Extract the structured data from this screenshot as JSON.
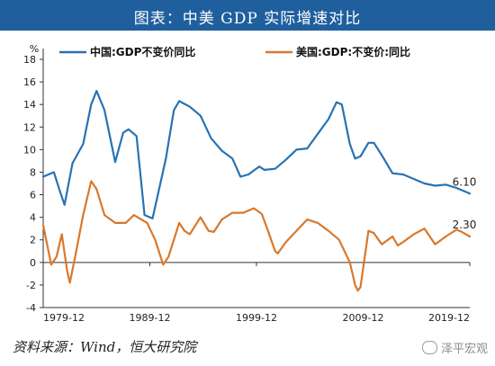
{
  "title": "图表：中美 GDP 实际增速对比",
  "source": "资料来源：Wind，恒大研究院",
  "watermark": "泽平宏观",
  "colors": {
    "title_bg": "#1f5f9e",
    "china": "#2872b3",
    "us": "#d9782b"
  },
  "chart_data": {
    "type": "line",
    "ylabel": "%",
    "ylim": [
      -4,
      18
    ],
    "yticks": [
      -4,
      -2,
      0,
      2,
      4,
      6,
      8,
      10,
      12,
      14,
      16,
      18
    ],
    "xlim": [
      1979.75,
      2019.75
    ],
    "xticks": [
      {
        "x": 1979.75,
        "label": "1979-12"
      },
      {
        "x": 1989.75,
        "label": "1989-12"
      },
      {
        "x": 1999.75,
        "label": "1999-12"
      },
      {
        "x": 2009.75,
        "label": "2009-12"
      },
      {
        "x": 2019.75,
        "label": "2019-12"
      }
    ],
    "series": [
      {
        "name": "中国:GDP不变价同比",
        "end_label": "6.10",
        "points": [
          [
            1979.75,
            7.6
          ],
          [
            1980.25,
            7.8
          ],
          [
            1980.75,
            8.0
          ],
          [
            1981.25,
            6.5
          ],
          [
            1981.75,
            5.1
          ],
          [
            1982.5,
            8.8
          ],
          [
            1983.5,
            10.5
          ],
          [
            1984.25,
            14.0
          ],
          [
            1984.75,
            15.2
          ],
          [
            1985.5,
            13.5
          ],
          [
            1986.5,
            8.9
          ],
          [
            1987.25,
            11.5
          ],
          [
            1987.75,
            11.8
          ],
          [
            1988.5,
            11.2
          ],
          [
            1989.25,
            4.2
          ],
          [
            1990.0,
            3.9
          ],
          [
            1990.5,
            6.0
          ],
          [
            1991.25,
            9.2
          ],
          [
            1992.0,
            13.5
          ],
          [
            1992.5,
            14.3
          ],
          [
            1993.5,
            13.8
          ],
          [
            1994.5,
            13.0
          ],
          [
            1995.5,
            11.0
          ],
          [
            1996.5,
            9.9
          ],
          [
            1997.5,
            9.2
          ],
          [
            1998.25,
            7.6
          ],
          [
            1999.0,
            7.8
          ],
          [
            2000.0,
            8.5
          ],
          [
            2000.5,
            8.2
          ],
          [
            2001.5,
            8.3
          ],
          [
            2002.5,
            9.1
          ],
          [
            2003.5,
            10.0
          ],
          [
            2004.5,
            10.1
          ],
          [
            2005.5,
            11.4
          ],
          [
            2006.5,
            12.7
          ],
          [
            2007.25,
            14.2
          ],
          [
            2007.75,
            14.0
          ],
          [
            2008.5,
            10.5
          ],
          [
            2009.0,
            9.2
          ],
          [
            2009.5,
            9.4
          ],
          [
            2010.25,
            10.6
          ],
          [
            2010.75,
            10.6
          ],
          [
            2011.5,
            9.5
          ],
          [
            2012.5,
            7.9
          ],
          [
            2013.5,
            7.8
          ],
          [
            2014.5,
            7.4
          ],
          [
            2015.5,
            7.0
          ],
          [
            2016.5,
            6.8
          ],
          [
            2017.5,
            6.9
          ],
          [
            2018.5,
            6.6
          ],
          [
            2019.75,
            6.1
          ]
        ]
      },
      {
        "name": "美国:GDP:不变价:同比",
        "end_label": "2.30",
        "points": [
          [
            1979.75,
            3.3
          ],
          [
            1980.5,
            -0.2
          ],
          [
            1981.0,
            0.5
          ],
          [
            1981.5,
            2.5
          ],
          [
            1982.0,
            -0.8
          ],
          [
            1982.25,
            -1.8
          ],
          [
            1982.75,
            0.5
          ],
          [
            1983.5,
            4.2
          ],
          [
            1984.25,
            7.2
          ],
          [
            1984.75,
            6.5
          ],
          [
            1985.5,
            4.2
          ],
          [
            1986.5,
            3.5
          ],
          [
            1987.5,
            3.5
          ],
          [
            1988.25,
            4.2
          ],
          [
            1989.5,
            3.5
          ],
          [
            1990.25,
            2.0
          ],
          [
            1991.0,
            -0.2
          ],
          [
            1991.5,
            0.5
          ],
          [
            1992.5,
            3.5
          ],
          [
            1993.0,
            2.8
          ],
          [
            1993.5,
            2.5
          ],
          [
            1994.5,
            4.0
          ],
          [
            1995.25,
            2.8
          ],
          [
            1995.75,
            2.7
          ],
          [
            1996.5,
            3.8
          ],
          [
            1997.5,
            4.4
          ],
          [
            1998.5,
            4.4
          ],
          [
            1999.5,
            4.8
          ],
          [
            2000.25,
            4.3
          ],
          [
            2000.75,
            3.0
          ],
          [
            2001.5,
            1.0
          ],
          [
            2001.75,
            0.8
          ],
          [
            2002.5,
            1.8
          ],
          [
            2003.5,
            2.8
          ],
          [
            2004.5,
            3.8
          ],
          [
            2005.5,
            3.5
          ],
          [
            2006.5,
            2.8
          ],
          [
            2007.5,
            2.0
          ],
          [
            2008.5,
            0.0
          ],
          [
            2009.0,
            -2.0
          ],
          [
            2009.25,
            -2.5
          ],
          [
            2009.5,
            -2.2
          ],
          [
            2010.25,
            2.8
          ],
          [
            2010.75,
            2.6
          ],
          [
            2011.5,
            1.6
          ],
          [
            2012.5,
            2.3
          ],
          [
            2013.0,
            1.5
          ],
          [
            2013.5,
            1.8
          ],
          [
            2014.5,
            2.5
          ],
          [
            2015.5,
            3.0
          ],
          [
            2016.5,
            1.6
          ],
          [
            2017.5,
            2.3
          ],
          [
            2018.5,
            2.9
          ],
          [
            2019.0,
            2.7
          ],
          [
            2019.75,
            2.3
          ]
        ]
      }
    ]
  }
}
